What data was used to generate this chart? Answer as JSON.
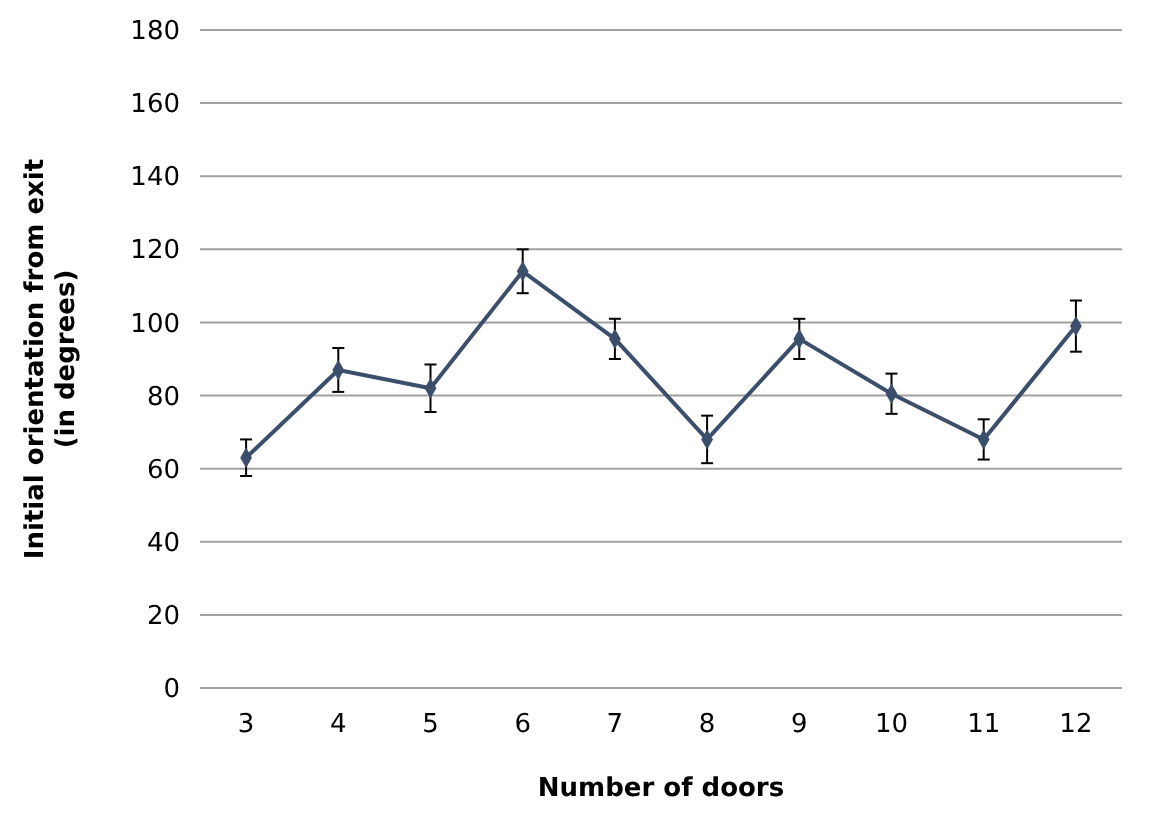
{
  "chart_data": {
    "type": "line",
    "xlabel": "Number of doors",
    "ylabel": "Initial orientation from exit (in degrees)",
    "categories": [
      "3",
      "4",
      "5",
      "6",
      "7",
      "8",
      "9",
      "10",
      "11",
      "12"
    ],
    "series": [
      {
        "color": "#3b4e6b",
        "values": [
          63,
          87,
          82,
          114,
          95.5,
          68,
          95.5,
          80.5,
          68,
          99
        ],
        "errors": [
          5,
          6,
          6.5,
          6,
          5.5,
          6.5,
          5.5,
          5.5,
          5.5,
          7
        ]
      }
    ],
    "ylim": [
      0,
      180
    ],
    "yticks": [
      0,
      20,
      40,
      60,
      80,
      100,
      120,
      140,
      160,
      180
    ],
    "grid": "y",
    "marker": "diamond",
    "line_style": "solid"
  }
}
